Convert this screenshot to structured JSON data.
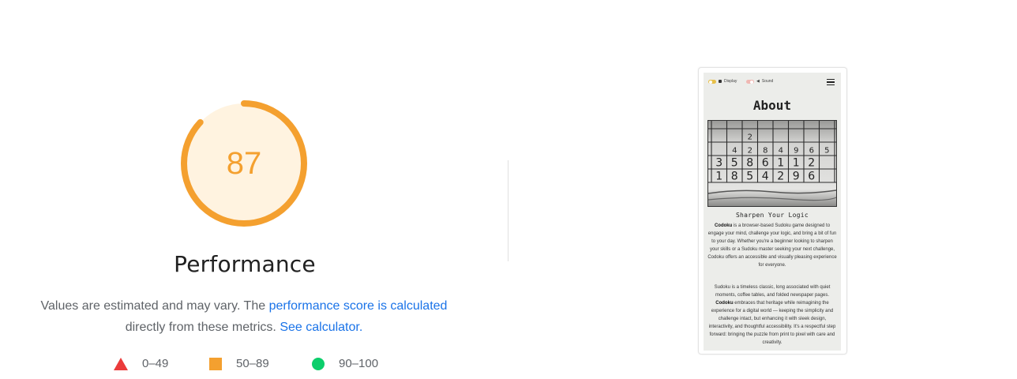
{
  "gauge": {
    "score": "87",
    "score_fraction": 0.87,
    "title": "Performance",
    "color": "#f4a02f",
    "track_color": "#fff3e0"
  },
  "description": {
    "text_before": "Values are estimated and may vary. The ",
    "link1": "performance score is calculated",
    "text_middle": "directly from these metrics. ",
    "link2": "See calculator."
  },
  "legend": [
    {
      "shape": "triangle",
      "label": "0–49",
      "color": "#eb3b3b"
    },
    {
      "shape": "square",
      "label": "50–89",
      "color": "#f4a02f"
    },
    {
      "shape": "circle",
      "label": "90–100",
      "color": "#0cce6b"
    }
  ],
  "screenshot": {
    "display_label": "Display",
    "sound_label": "Sound",
    "page_title": "About",
    "grid_digits": [
      [
        "",
        "",
        "2",
        "",
        "",
        "",
        "",
        ""
      ],
      [
        "",
        "4",
        "2",
        "8",
        "4",
        "9",
        "6",
        "5"
      ],
      [
        "3",
        "5",
        "8",
        "6",
        "1",
        "1",
        "2",
        ""
      ],
      [
        "1",
        "8",
        "5",
        "4",
        "2",
        "9",
        "6",
        ""
      ]
    ],
    "subtitle": "Sharpen Your Logic",
    "p1_brand": "Codoku",
    "p1_text": " is a browser-based Sudoku game designed to engage your mind, challenge your logic, and bring a bit of fun to your day. Whether you're a beginner looking to sharpen your skills or a Sudoku master seeking your next challenge, Codoku offers an accessible and visually pleasing experience for everyone.",
    "p2_text_a": "Sudoku is a timeless classic, long associated with quiet moments, coffee tables, and folded newspaper pages. ",
    "p2_brand": "Codoku",
    "p2_text_b": " embraces that heritage while reimagining the experience for a digital world — keeping the simplicity and challenge intact, but enhancing it with sleek design, interactivity, and thoughtful accessibility. It's a respectful step forward: bringing the puzzle from print to pixel with care and creativity."
  }
}
